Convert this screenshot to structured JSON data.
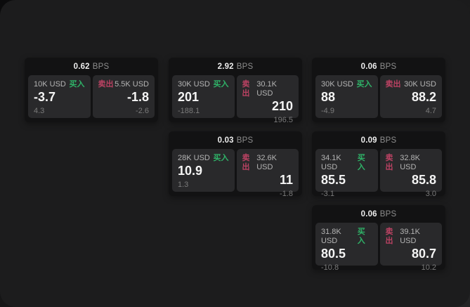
{
  "labels": {
    "buy": "买入",
    "sell": "卖出",
    "bps_unit": "BPS"
  },
  "colors": {
    "buy_green": "#2fb368",
    "sell_red": "#bb4263",
    "window_bg": "#1c1c1d",
    "card_bg": "#121213",
    "tile_bg": "#29292b"
  },
  "cards": [
    {
      "bps": "0.62",
      "row": 1,
      "col": 1,
      "buy": {
        "amount": "10K USD",
        "price": "-3.7",
        "delta": "4.3"
      },
      "sell": {
        "amount": "5.5K USD",
        "price": "-1.8",
        "delta": "-2.6"
      }
    },
    {
      "bps": "2.92",
      "row": 1,
      "col": 2,
      "buy": {
        "amount": "30K USD",
        "price": "201",
        "delta": "-188.1"
      },
      "sell": {
        "amount": "30.1K USD",
        "price": "210",
        "delta": "196.5"
      }
    },
    {
      "bps": "0.06",
      "row": 1,
      "col": 3,
      "buy": {
        "amount": "30K USD",
        "price": "88",
        "delta": "-4.9"
      },
      "sell": {
        "amount": "30K USD",
        "price": "88.2",
        "delta": "4.7"
      }
    },
    {
      "bps": "0.03",
      "row": 2,
      "col": 2,
      "buy": {
        "amount": "28K USD",
        "price": "10.9",
        "delta": "1.3"
      },
      "sell": {
        "amount": "32.6K USD",
        "price": "11",
        "delta": "-1.8"
      }
    },
    {
      "bps": "0.09",
      "row": 2,
      "col": 3,
      "buy": {
        "amount": "34.1K USD",
        "price": "85.5",
        "delta": "-3.1"
      },
      "sell": {
        "amount": "32.8K USD",
        "price": "85.8",
        "delta": "3.0"
      }
    },
    {
      "bps": "0.06",
      "row": 3,
      "col": 3,
      "buy": {
        "amount": "31.8K USD",
        "price": "80.5",
        "delta": "-10.8"
      },
      "sell": {
        "amount": "39.1K USD",
        "price": "80.7",
        "delta": "10.2"
      }
    }
  ]
}
